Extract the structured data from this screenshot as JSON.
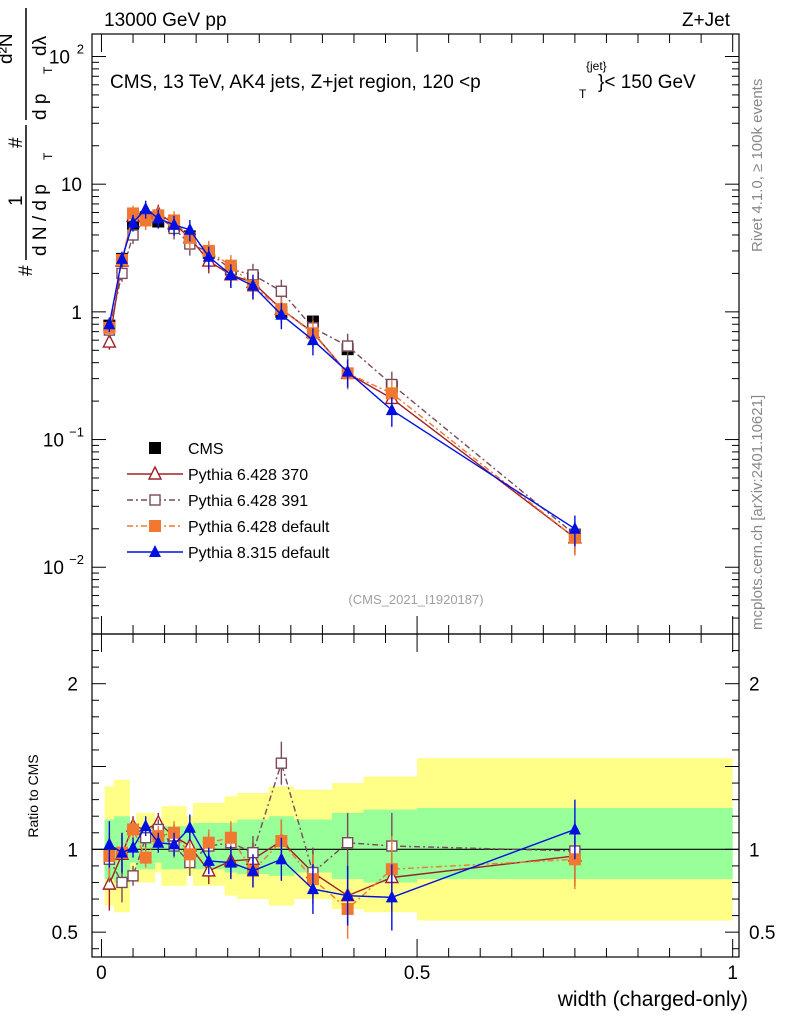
{
  "header": {
    "left": "13000 GeV pp",
    "right": "Z+Jet"
  },
  "chart_data": {
    "type": "line",
    "title": "CMS, 13 TeV, AK4 jets, Z+jet region, 120 <p",
    "title_sup": "{jet}",
    "title_sub": "T",
    "title_suffix": "}< 150 GeV",
    "analysis_tag": "(CMS_2021_I1920187)",
    "ylabel_parts": {
      "hash": "#",
      "one": "1",
      "dN": "d N / d p",
      "T": "T",
      "d2N": "d²N",
      "dpTdl": "d p",
      "dl": "dλ"
    },
    "xlabel": "width (charged-only)",
    "ratio_ylabel": "Ratio to CMS",
    "side_text_top": "Rivet 4.1.0, ≥ 100k events",
    "side_text_bottom": "mcplots.cern.ch [arXiv:2401.10621]",
    "x_ticks": [
      "0",
      "0.5",
      "1"
    ],
    "xlim": [
      0,
      1
    ],
    "ylim_log": [
      0.003,
      150
    ],
    "y_ticks": [
      {
        "value": 100,
        "base": "10",
        "exp": "2"
      },
      {
        "value": 10,
        "base": "10",
        "exp": ""
      },
      {
        "value": 1,
        "base": "1",
        "exp": ""
      },
      {
        "value": 0.1,
        "base": "10",
        "exp": "−1"
      },
      {
        "value": 0.01,
        "base": "10",
        "exp": "−2"
      }
    ],
    "ratio_ylim": [
      0.35,
      2.3
    ],
    "ratio_ticks": [
      "0.5",
      "1",
      "2"
    ],
    "ratio_tick_values": [
      0.5,
      1,
      2
    ],
    "x": [
      0.0125,
      0.0325,
      0.05,
      0.07,
      0.09,
      0.115,
      0.14,
      0.17,
      0.205,
      0.24,
      0.285,
      0.335,
      0.39,
      0.46,
      0.75
    ],
    "bin_edges": [
      0.005,
      0.02,
      0.045,
      0.055,
      0.085,
      0.095,
      0.135,
      0.145,
      0.195,
      0.215,
      0.265,
      0.305,
      0.365,
      0.415,
      0.5,
      1.0
    ],
    "band_yellow": [
      [
        0.66,
        1.38
      ],
      [
        0.62,
        1.42
      ],
      [
        0.86,
        1.16
      ],
      [
        0.8,
        1.22
      ],
      [
        0.86,
        1.18
      ],
      [
        0.78,
        1.26
      ],
      [
        0.84,
        1.2
      ],
      [
        0.78,
        1.28
      ],
      [
        0.72,
        1.32
      ],
      [
        0.7,
        1.34
      ],
      [
        0.66,
        1.38
      ],
      [
        0.7,
        1.36
      ],
      [
        0.64,
        1.4
      ],
      [
        0.62,
        1.44
      ],
      [
        0.57,
        1.55
      ]
    ],
    "band_green": [
      [
        0.82,
        1.18
      ],
      [
        0.8,
        1.2
      ],
      [
        0.92,
        1.08
      ],
      [
        0.88,
        1.12
      ],
      [
        0.92,
        1.09
      ],
      [
        0.88,
        1.14
      ],
      [
        0.9,
        1.1
      ],
      [
        0.88,
        1.16
      ],
      [
        0.86,
        1.16
      ],
      [
        0.85,
        1.18
      ],
      [
        0.84,
        1.2
      ],
      [
        0.86,
        1.18
      ],
      [
        0.82,
        1.22
      ],
      [
        0.8,
        1.24
      ],
      [
        0.82,
        1.25
      ]
    ],
    "series": [
      {
        "name": "CMS",
        "color": "#000000",
        "marker": "square",
        "values": [
          0.78,
          2.6,
          4.9,
          5.5,
          5.1,
          4.7,
          3.9,
          2.9,
          2.15,
          1.85,
          1.0,
          0.84,
          0.51,
          0.26,
          0.018
        ],
        "ratio": [
          1,
          1,
          1,
          1,
          1,
          1,
          1,
          1,
          1,
          1,
          1,
          1,
          1,
          1,
          1
        ]
      },
      {
        "name": "Pythia 6.428 370",
        "color": "#a0202a",
        "marker": "triangle-open",
        "dash": "",
        "values": [
          0.58,
          2.5,
          5.6,
          6.1,
          5.9,
          4.9,
          3.8,
          2.5,
          1.95,
          1.7,
          1.05,
          0.69,
          0.33,
          0.21,
          0.017
        ],
        "ratio": [
          0.79,
          0.97,
          1.14,
          1.12,
          1.16,
          1.08,
          1.02,
          0.87,
          0.93,
          0.94,
          1.05,
          0.86,
          0.72,
          0.83,
          0.96
        ],
        "yerr": [
          0.16,
          0.12,
          0.06,
          0.06,
          0.06,
          0.07,
          0.08,
          0.08,
          0.1,
          0.1,
          0.13,
          0.15,
          0.18,
          0.2,
          0.18
        ]
      },
      {
        "name": "Pythia 6.428 391",
        "color": "#7a4a5c",
        "marker": "square-open",
        "dash": "6,3,2,3",
        "values": [
          0.72,
          2.0,
          4.0,
          5.3,
          5.6,
          4.5,
          3.4,
          2.95,
          2.15,
          1.95,
          1.45,
          0.75,
          0.54,
          0.27,
          0.018
        ],
        "ratio": [
          0.94,
          0.8,
          0.84,
          1.07,
          1.12,
          1.02,
          0.92,
          1.02,
          1.04,
          0.98,
          1.52,
          0.86,
          1.04,
          1.02,
          0.99
        ],
        "yerr": [
          0.14,
          0.12,
          0.06,
          0.06,
          0.06,
          0.07,
          0.08,
          0.08,
          0.1,
          0.1,
          0.13,
          0.15,
          0.18,
          0.2,
          0.18
        ]
      },
      {
        "name": "Pythia 6.428 default",
        "color": "#f07830",
        "marker": "square",
        "dash": "6,3,2,3",
        "values": [
          0.75,
          2.55,
          5.9,
          5.2,
          5.7,
          5.2,
          3.8,
          3.0,
          2.3,
          1.6,
          1.05,
          0.68,
          0.33,
          0.23,
          0.017
        ],
        "ratio": [
          0.96,
          0.98,
          1.12,
          0.95,
          1.08,
          1.1,
          0.97,
          1.04,
          1.07,
          0.87,
          1.05,
          0.82,
          0.64,
          0.88,
          0.94
        ],
        "yerr": [
          0.14,
          0.12,
          0.06,
          0.06,
          0.06,
          0.07,
          0.08,
          0.08,
          0.1,
          0.1,
          0.13,
          0.15,
          0.18,
          0.2,
          0.18
        ]
      },
      {
        "name": "Pythia 8.315 default",
        "color": "#0010e0",
        "marker": "triangle",
        "dash": "",
        "values": [
          0.8,
          2.6,
          5.0,
          6.4,
          5.4,
          4.8,
          4.4,
          2.7,
          1.95,
          1.6,
          0.95,
          0.6,
          0.34,
          0.17,
          0.02
        ],
        "ratio": [
          1.03,
          0.98,
          1.01,
          1.14,
          1.04,
          1.03,
          1.13,
          0.93,
          0.92,
          0.87,
          0.94,
          0.76,
          0.72,
          0.71,
          1.12
        ],
        "yerr": [
          0.14,
          0.12,
          0.06,
          0.06,
          0.06,
          0.07,
          0.08,
          0.08,
          0.1,
          0.1,
          0.13,
          0.15,
          0.18,
          0.2,
          0.18
        ]
      }
    ]
  }
}
